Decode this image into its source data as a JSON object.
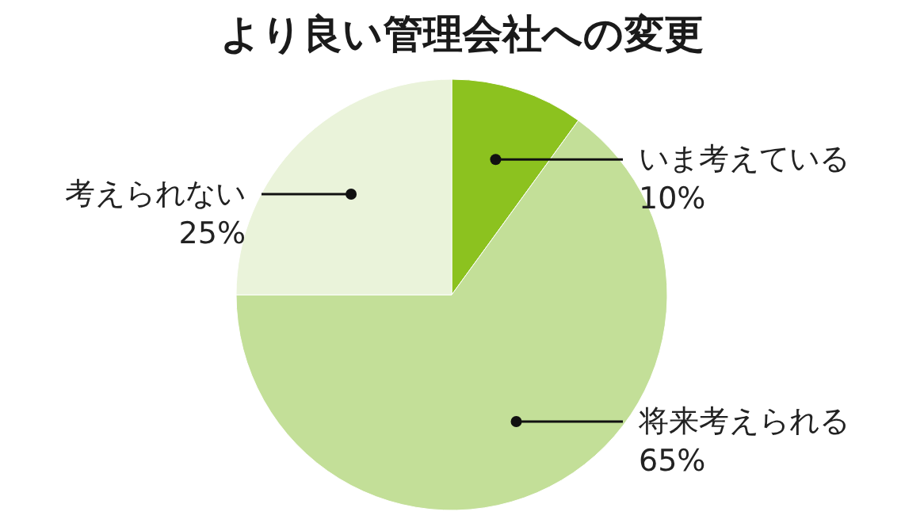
{
  "chart_data": {
    "type": "pie",
    "title": "より良い管理会社への変更",
    "categories": [
      "いま考えている",
      "将来考えられる",
      "考えられない"
    ],
    "values": [
      10,
      65,
      25
    ],
    "value_labels": [
      "10%",
      "65%",
      "25%"
    ],
    "colors": [
      "#8cc21f",
      "#c3df98",
      "#eaf3da"
    ]
  }
}
